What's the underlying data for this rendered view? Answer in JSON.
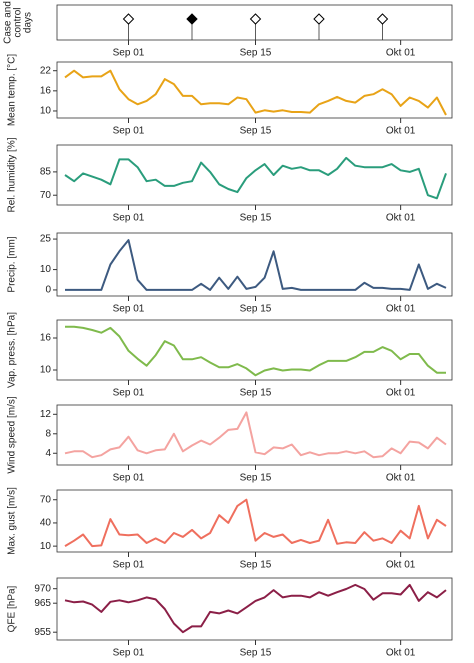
{
  "chart_data": [
    {
      "type": "event",
      "ylabel": [
        "Case and",
        "control",
        "days"
      ],
      "color": "#000000",
      "categories": [
        null,
        null,
        null,
        null,
        null,
        null,
        null,
        "Sep 01",
        null,
        null,
        null,
        null,
        null,
        null,
        null,
        null,
        null,
        null,
        null,
        null,
        null,
        "Sep 15",
        null,
        null,
        null,
        null,
        null,
        null,
        null,
        null,
        null,
        null,
        null,
        null,
        null,
        null,
        null,
        "Okt 01",
        null,
        null,
        null,
        null,
        null
      ],
      "values": [
        null,
        null,
        null,
        null,
        null,
        null,
        null,
        0,
        null,
        null,
        null,
        null,
        null,
        null,
        1,
        null,
        null,
        null,
        null,
        null,
        null,
        0,
        null,
        null,
        null,
        null,
        null,
        null,
        0,
        null,
        null,
        null,
        null,
        null,
        null,
        0,
        null,
        null,
        null,
        null,
        null,
        null,
        null
      ]
    },
    {
      "type": "line",
      "ylabel": "Mean temp. [°C]",
      "color": "#e8a317",
      "categories": [
        null,
        null,
        null,
        null,
        null,
        null,
        null,
        "Sep 01",
        null,
        null,
        null,
        null,
        null,
        null,
        null,
        null,
        null,
        null,
        null,
        null,
        null,
        "Sep 15",
        null,
        null,
        null,
        null,
        null,
        null,
        null,
        null,
        null,
        null,
        null,
        null,
        null,
        null,
        null,
        "Okt 01",
        null,
        null,
        null,
        null,
        null
      ],
      "values": [
        20,
        22,
        20,
        20.3,
        20.3,
        22,
        16.5,
        13.5,
        12,
        13,
        15,
        19.5,
        18,
        14.5,
        14.5,
        12,
        12.3,
        12.3,
        12,
        14,
        13.5,
        9.5,
        10.2,
        9.8,
        10.2,
        9.7,
        9.7,
        9.5,
        12,
        13,
        14.2,
        13,
        12.5,
        14.5,
        15,
        16.5,
        15,
        11.5,
        14,
        13,
        11,
        14,
        8.8
      ],
      "ylim": [
        8.5,
        24
      ],
      "yticks": [
        10,
        16,
        22
      ]
    },
    {
      "type": "line",
      "ylabel": "Rel. humidity [%]",
      "color": "#2a9d7c",
      "categories": [
        null,
        null,
        null,
        null,
        null,
        null,
        null,
        "Sep 01",
        null,
        null,
        null,
        null,
        null,
        null,
        null,
        null,
        null,
        null,
        null,
        null,
        null,
        "Sep 15",
        null,
        null,
        null,
        null,
        null,
        null,
        null,
        null,
        null,
        null,
        null,
        null,
        null,
        null,
        null,
        "Okt 01",
        null,
        null,
        null,
        null,
        null
      ],
      "values": [
        83,
        79,
        84,
        82,
        80,
        77,
        93,
        93,
        88,
        79,
        80,
        76,
        76,
        78,
        79,
        91,
        85,
        77,
        74,
        72,
        81,
        86,
        90,
        83,
        89,
        87,
        88,
        86,
        86,
        83,
        87,
        94,
        89,
        88,
        88,
        88,
        90,
        86,
        85,
        87,
        70,
        68,
        84
      ],
      "ylim": [
        65,
        101
      ],
      "yticks": [
        70,
        85
      ]
    },
    {
      "type": "line",
      "ylabel": "Precip. [mm]",
      "color": "#3d5a80",
      "categories": [
        null,
        null,
        null,
        null,
        null,
        null,
        null,
        "Sep 01",
        null,
        null,
        null,
        null,
        null,
        null,
        null,
        null,
        null,
        null,
        null,
        null,
        null,
        "Sep 15",
        null,
        null,
        null,
        null,
        null,
        null,
        null,
        null,
        null,
        null,
        null,
        null,
        null,
        null,
        null,
        "Okt 01",
        null,
        null,
        null,
        null,
        null
      ],
      "values": [
        0,
        0,
        0,
        0,
        0,
        12.5,
        19,
        24.5,
        5,
        0,
        0,
        0,
        0,
        0,
        0,
        3,
        0,
        6,
        0.5,
        6.5,
        0.5,
        1.5,
        6,
        19,
        0.5,
        1,
        0,
        0,
        0,
        0,
        0,
        0,
        0,
        3.5,
        1,
        1,
        0.5,
        0.5,
        0,
        12.5,
        0.5,
        3,
        1
      ],
      "ylim": [
        -2,
        27
      ],
      "yticks": [
        0,
        10,
        25
      ]
    },
    {
      "type": "line",
      "ylabel": "Vap. press. [hPa]",
      "color": "#7fba4c",
      "categories": [
        null,
        null,
        null,
        null,
        null,
        null,
        null,
        "Sep 01",
        null,
        null,
        null,
        null,
        null,
        null,
        null,
        null,
        null,
        null,
        null,
        null,
        null,
        "Sep 15",
        null,
        null,
        null,
        null,
        null,
        null,
        null,
        null,
        null,
        null,
        null,
        null,
        null,
        null,
        null,
        "Okt 01",
        null,
        null,
        null,
        null,
        null
      ],
      "values": [
        18.1,
        18.1,
        17.9,
        17.5,
        17,
        17.9,
        16.3,
        13.6,
        12.1,
        10.8,
        12.8,
        15.4,
        14.6,
        12,
        12,
        12.4,
        11.4,
        10.5,
        10.5,
        11.1,
        10.3,
        9,
        9.9,
        10.3,
        9.9,
        10.1,
        10.1,
        9.9,
        10.9,
        11.7,
        11.7,
        11.7,
        12.4,
        13.4,
        13.4,
        14.3,
        13.6,
        12,
        13,
        13,
        10.8,
        9.5,
        9.5
      ],
      "ylim": [
        8.5,
        19
      ],
      "yticks": [
        10,
        16
      ]
    },
    {
      "type": "line",
      "ylabel": "Wind speed [m/s]",
      "color": "#f4a3a0",
      "categories": [
        null,
        null,
        null,
        null,
        null,
        null,
        null,
        "Sep 01",
        null,
        null,
        null,
        null,
        null,
        null,
        null,
        null,
        null,
        null,
        null,
        null,
        null,
        "Sep 15",
        null,
        null,
        null,
        null,
        null,
        null,
        null,
        null,
        null,
        null,
        null,
        null,
        null,
        null,
        null,
        "Okt 01",
        null,
        null,
        null,
        null,
        null
      ],
      "values": [
        4,
        4.4,
        4.4,
        3.2,
        3.6,
        4.8,
        5.2,
        7.4,
        4.6,
        4,
        4.6,
        4.8,
        8,
        4.4,
        5.6,
        6.6,
        5.8,
        7.2,
        8.8,
        9,
        12.4,
        4.2,
        3.8,
        5.2,
        5,
        5.8,
        3.6,
        4.2,
        3.6,
        4,
        4,
        4.4,
        4,
        4.4,
        3.2,
        3.4,
        5,
        4,
        6.4,
        6.2,
        5,
        7.2,
        5.8
      ],
      "ylim": [
        2,
        13.5
      ],
      "yticks": [
        4,
        8,
        12
      ]
    },
    {
      "type": "line",
      "ylabel": "Max. gust [m/s]",
      "color": "#ef6f5e",
      "categories": [
        null,
        null,
        null,
        null,
        null,
        null,
        null,
        "Sep 01",
        null,
        null,
        null,
        null,
        null,
        null,
        null,
        null,
        null,
        null,
        null,
        null,
        null,
        "Sep 15",
        null,
        null,
        null,
        null,
        null,
        null,
        null,
        null,
        null,
        null,
        null,
        null,
        null,
        null,
        null,
        "Okt 01",
        null,
        null,
        null,
        null,
        null
      ],
      "values": [
        10,
        17,
        25,
        10,
        11,
        45,
        25,
        24,
        25,
        14,
        20,
        14,
        27,
        22,
        31,
        20,
        27,
        50,
        40,
        62,
        70,
        17,
        27,
        22,
        25,
        14,
        18,
        14,
        17,
        44,
        13,
        15,
        14,
        28,
        17,
        20,
        14,
        30,
        20,
        62,
        20,
        44,
        36
      ],
      "ylim": [
        5,
        80
      ],
      "yticks": [
        10,
        40,
        70
      ]
    },
    {
      "type": "line",
      "ylabel": "QFE [hPa]",
      "color": "#8b1f47",
      "categories": [
        null,
        null,
        null,
        null,
        null,
        null,
        null,
        "Sep 01",
        null,
        null,
        null,
        null,
        null,
        null,
        null,
        null,
        null,
        null,
        null,
        null,
        null,
        "Sep 15",
        null,
        null,
        null,
        null,
        null,
        null,
        null,
        null,
        null,
        null,
        null,
        null,
        null,
        null,
        null,
        "Okt 01",
        null,
        null,
        null,
        null,
        null
      ],
      "values": [
        966,
        965.3,
        965.6,
        964.5,
        962,
        965.5,
        966,
        965.3,
        966,
        967,
        966.3,
        963,
        958,
        955,
        957,
        957,
        962,
        961.5,
        962.5,
        961.5,
        963.6,
        965.8,
        967,
        969.5,
        967,
        967.6,
        967.6,
        967,
        968.8,
        967.6,
        968.8,
        969.9,
        971.3,
        969.9,
        966.2,
        968.4,
        968.4,
        968,
        971.3,
        965.8,
        968.8,
        967,
        969.5
      ],
      "ylim": [
        953,
        973
      ],
      "yticks": [
        955,
        965,
        970
      ]
    }
  ]
}
